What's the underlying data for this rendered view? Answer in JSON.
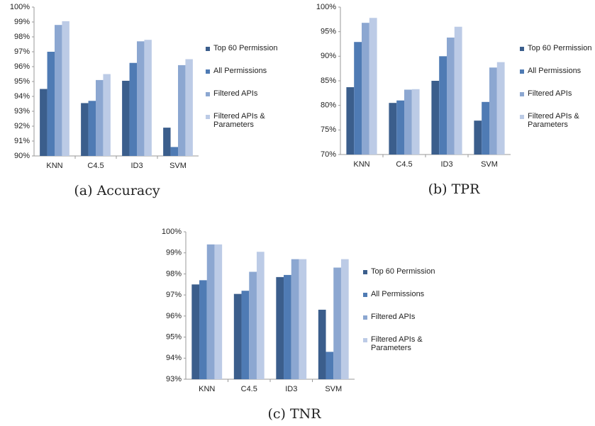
{
  "chart_data": [
    {
      "type": "bar",
      "caption": "(a) Accuracy",
      "categories": [
        "KNN",
        "C4.5",
        "ID3",
        "SVM"
      ],
      "series": [
        {
          "name": "Top 60 Permission",
          "color": "#3b5e8c",
          "values": [
            94.5,
            93.55,
            95.05,
            91.9
          ]
        },
        {
          "name": "All Permissions",
          "color": "#4f7bb4",
          "values": [
            97.0,
            93.7,
            96.25,
            90.6
          ]
        },
        {
          "name": "Filtered APIs",
          "color": "#8ca7d1",
          "values": [
            98.8,
            95.1,
            97.7,
            96.1
          ]
        },
        {
          "name": "Filtered APIs & Parameters",
          "color": "#bccbe6",
          "values": [
            99.05,
            95.5,
            97.8,
            96.5
          ]
        }
      ],
      "ylim": [
        90,
        100
      ],
      "yticks": [
        {
          "value": 90,
          "label": "90%"
        },
        {
          "value": 91,
          "label": "91%"
        },
        {
          "value": 92,
          "label": "92%"
        },
        {
          "value": 93,
          "label": "93%"
        },
        {
          "value": 94,
          "label": "94%"
        },
        {
          "value": 95,
          "label": "95%"
        },
        {
          "value": 96,
          "label": "96%"
        },
        {
          "value": 97,
          "label": "97%"
        },
        {
          "value": 98,
          "label": "98%"
        },
        {
          "value": 99,
          "label": "99%"
        },
        {
          "value": 100,
          "label": "100%"
        }
      ],
      "grid": false,
      "legend": "right"
    },
    {
      "type": "bar",
      "caption": "(b) TPR",
      "categories": [
        "KNN",
        "C4.5",
        "ID3",
        "SVM"
      ],
      "series": [
        {
          "name": "Top 60 Permission",
          "color": "#3b5e8c",
          "values": [
            83.7,
            80.5,
            85.0,
            76.9
          ]
        },
        {
          "name": "All Permissions",
          "color": "#4f7bb4",
          "values": [
            92.9,
            81.0,
            90.0,
            80.7
          ]
        },
        {
          "name": "Filtered APIs",
          "color": "#8ca7d1",
          "values": [
            96.8,
            83.2,
            93.8,
            87.7
          ]
        },
        {
          "name": "Filtered APIs & Parameters",
          "color": "#bccbe6",
          "values": [
            97.8,
            83.3,
            96.0,
            88.8
          ]
        }
      ],
      "ylim": [
        70,
        100
      ],
      "yticks": [
        {
          "value": 70,
          "label": "70%"
        },
        {
          "value": 75,
          "label": "75%"
        },
        {
          "value": 80,
          "label": "80%"
        },
        {
          "value": 85,
          "label": "85%"
        },
        {
          "value": 90,
          "label": "90%"
        },
        {
          "value": 95,
          "label": "95%"
        },
        {
          "value": 100,
          "label": "100%"
        }
      ],
      "grid": false,
      "legend": "right"
    },
    {
      "type": "bar",
      "caption": "(c) TNR",
      "categories": [
        "KNN",
        "C4.5",
        "ID3",
        "SVM"
      ],
      "series": [
        {
          "name": "Top 60 Permission",
          "color": "#3b5e8c",
          "values": [
            97.5,
            97.05,
            97.85,
            96.3
          ]
        },
        {
          "name": "All Permissions",
          "color": "#4f7bb4",
          "values": [
            97.7,
            97.2,
            97.95,
            94.3
          ]
        },
        {
          "name": "Filtered APIs",
          "color": "#8ca7d1",
          "values": [
            99.4,
            98.1,
            98.7,
            98.3
          ]
        },
        {
          "name": "Filtered APIs & Parameters",
          "color": "#bccbe6",
          "values": [
            99.4,
            99.05,
            98.7,
            98.7
          ]
        }
      ],
      "ylim": [
        93,
        100
      ],
      "yticks": [
        {
          "value": 93,
          "label": "93%"
        },
        {
          "value": 94,
          "label": "94%"
        },
        {
          "value": 95,
          "label": "95%"
        },
        {
          "value": 96,
          "label": "96%"
        },
        {
          "value": 97,
          "label": "97%"
        },
        {
          "value": 98,
          "label": "98%"
        },
        {
          "value": 99,
          "label": "99%"
        },
        {
          "value": 100,
          "label": "100%"
        }
      ],
      "grid": false,
      "legend": "right"
    }
  ]
}
